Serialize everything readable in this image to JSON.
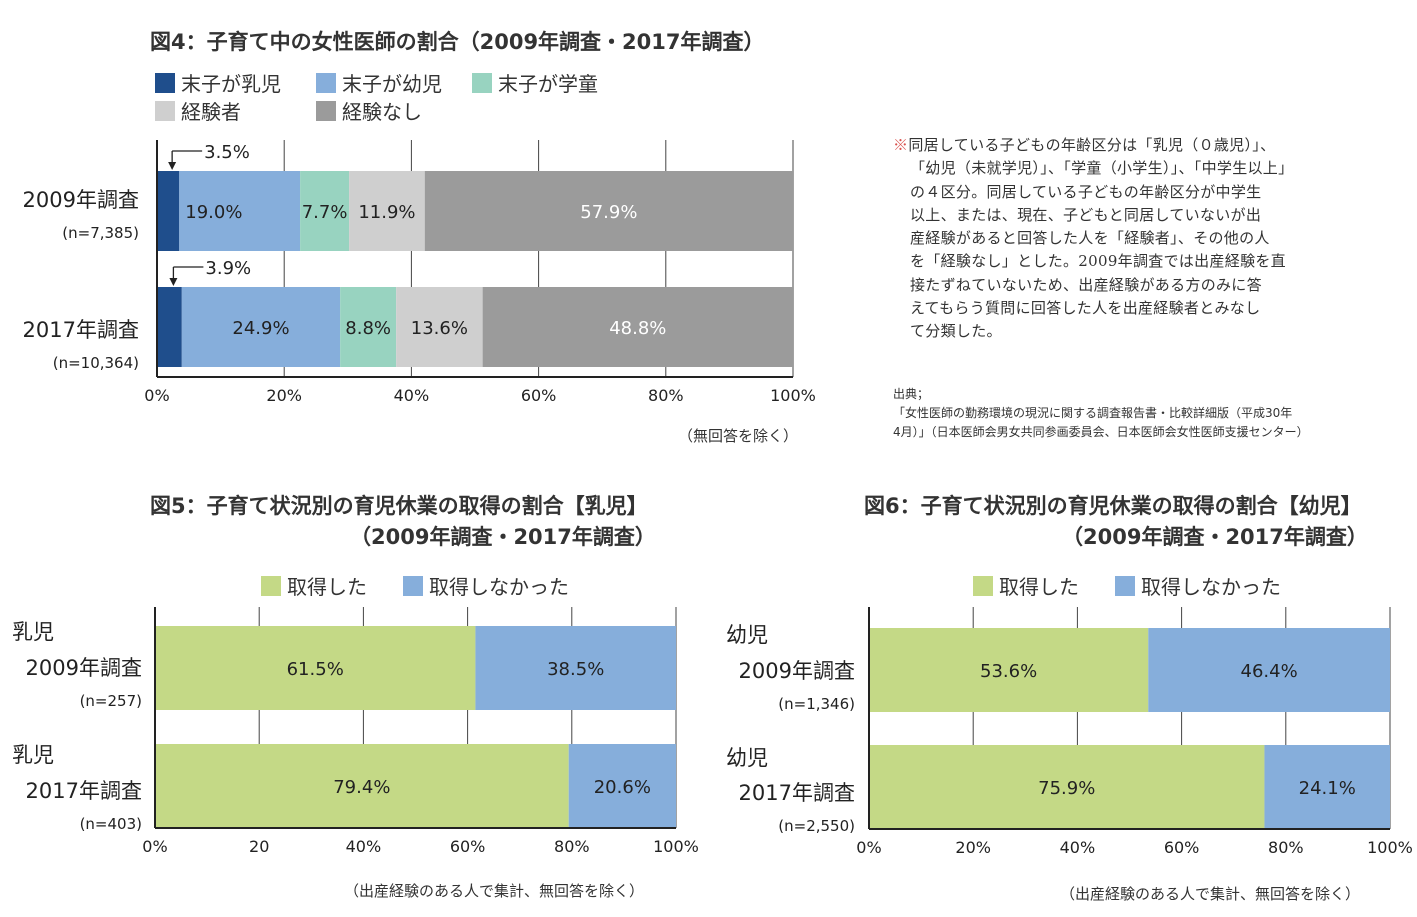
{
  "chart_data": [
    {
      "type": "bar",
      "orientation": "horizontal",
      "stacked": true,
      "title": "図4：子育て中の女性医師の割合（2009年調査・2017年調査）",
      "categories": [
        "2009年調査",
        "2017年調査"
      ],
      "category_n": [
        "(n=7,385)",
        "(n=10,364)"
      ],
      "series": [
        {
          "name": "末子が乳児",
          "values": [
            3.5,
            3.9
          ],
          "labels": [
            "3.5%",
            "3.9%"
          ],
          "color": "#1f4e8c"
        },
        {
          "name": "末子が幼児",
          "values": [
            19.0,
            24.9
          ],
          "labels": [
            "19.0%",
            "24.9%"
          ],
          "color": "#86aedb"
        },
        {
          "name": "末子が学童",
          "values": [
            7.7,
            8.8
          ],
          "labels": [
            "7.7%",
            "8.8%"
          ],
          "color": "#98d3c0"
        },
        {
          "name": "経験者",
          "values": [
            11.9,
            13.6
          ],
          "labels": [
            "11.9%",
            "13.6%"
          ],
          "color": "#cfcfcf"
        },
        {
          "name": "経験なし",
          "values": [
            57.9,
            48.8
          ],
          "labels": [
            "57.9%",
            "48.8%"
          ],
          "color": "#9b9b9b"
        }
      ],
      "xlim": [
        0,
        100
      ],
      "ticks": [
        "0%",
        "20%",
        "40%",
        "60%",
        "80%",
        "100%"
      ],
      "grid": true,
      "legend": "top-left",
      "footnote": "（無回答を除く）"
    },
    {
      "type": "bar",
      "orientation": "horizontal",
      "stacked": true,
      "title_line1": "図5：子育て状況別の育児休業の取得の割合【乳児】",
      "title_line2": "（2009年調査・2017年調査）",
      "categories": [
        "乳児|2009年調査",
        "乳児|2017年調査"
      ],
      "category_top": [
        "乳児",
        "乳児"
      ],
      "category_main": [
        "2009年調査",
        "2017年調査"
      ],
      "category_n": [
        "(n=257)",
        "(n=403)"
      ],
      "series": [
        {
          "name": "取得した",
          "values": [
            61.5,
            79.4
          ],
          "labels": [
            "61.5%",
            "79.4%"
          ],
          "color": "#c4d986"
        },
        {
          "name": "取得しなかった",
          "values": [
            38.5,
            20.6
          ],
          "labels": [
            "38.5%",
            "20.6%"
          ],
          "color": "#86aedb"
        }
      ],
      "xlim": [
        0,
        100
      ],
      "ticks": [
        "0%",
        "20",
        "40%",
        "60%",
        "80%",
        "100%"
      ],
      "grid": true,
      "legend": "top-center",
      "footnote": "（出産経験のある人で集計、無回答を除く）"
    },
    {
      "type": "bar",
      "orientation": "horizontal",
      "stacked": true,
      "title_line1": "図6：子育て状況別の育児休業の取得の割合【幼児】",
      "title_line2": "（2009年調査・2017年調査）",
      "categories": [
        "幼児|2009年調査",
        "幼児|2017年調査"
      ],
      "category_top": [
        "幼児",
        "幼児"
      ],
      "category_main": [
        "2009年調査",
        "2017年調査"
      ],
      "category_n": [
        "(n=1,346)",
        "(n=2,550)"
      ],
      "series": [
        {
          "name": "取得した",
          "values": [
            53.6,
            75.9
          ],
          "labels": [
            "53.6%",
            "75.9%"
          ],
          "color": "#c4d986"
        },
        {
          "name": "取得しなかった",
          "values": [
            46.4,
            24.1
          ],
          "labels": [
            "46.4%",
            "24.1%"
          ],
          "color": "#86aedb"
        }
      ],
      "xlim": [
        0,
        100
      ],
      "ticks": [
        "0%",
        "20%",
        "40%",
        "60%",
        "80%",
        "100%"
      ],
      "grid": true,
      "legend": "top-center",
      "footnote": "（出産経験のある人で集計、無回答を除く）"
    }
  ],
  "note": {
    "mark": "※",
    "lines": [
      "同居している子どもの年齢区分は「乳児（０歳児）」、",
      "「幼児（未就学児）」、「学童（小学生）」、「中学生以上」",
      "の４区分。同居している子どもの年齢区分が中学生",
      "以上、または、現在、子どもと同居していないが出",
      "産経験があると回答した人を「経験者」、その他の人",
      "を「経験なし」とした。2009年調査では出産経験を直",
      "接たずねていないため、出産経験がある方のみに答",
      "えてもらう質問に回答した人を出産経験者とみなし",
      "て分類した。"
    ]
  },
  "source": {
    "label": "出典；",
    "lines": [
      "「女性医師の勤務環境の現況に関する調査報告書・比較詳細版（平成30年",
      "4月）」（日本医師会男女共同参画委員会、日本医師会女性医師支援センター）"
    ]
  }
}
